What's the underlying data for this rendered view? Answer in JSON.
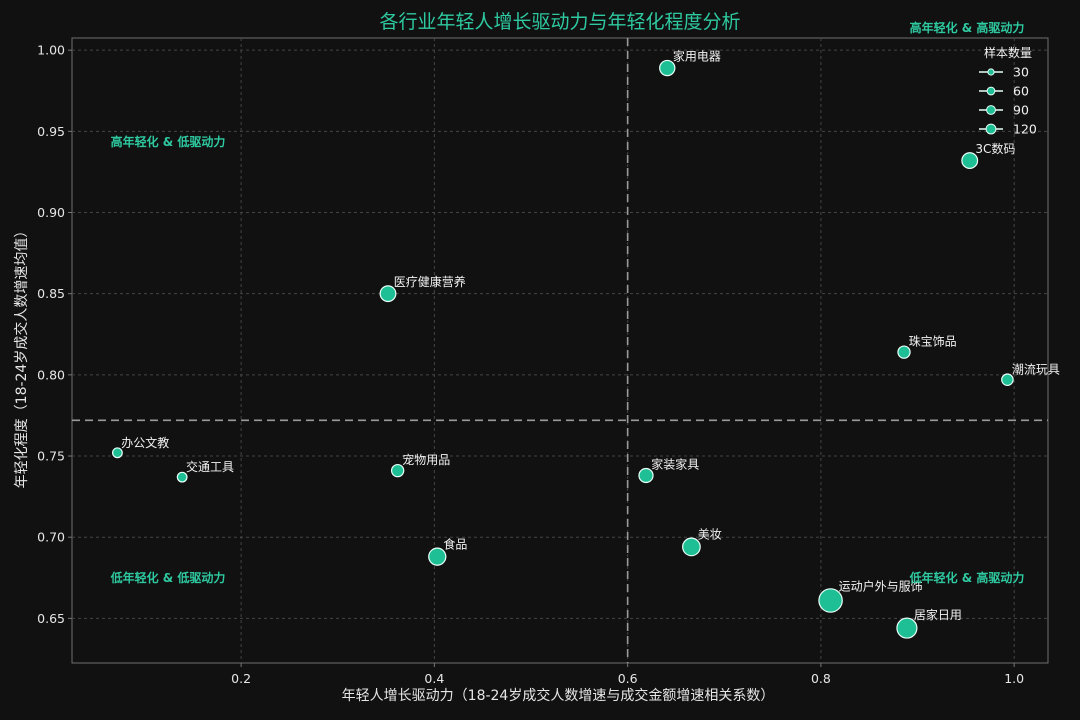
{
  "chart_data": {
    "type": "scatter",
    "title": "各行业年轻人增长驱动力与年轻化程度分析",
    "xlabel": "年轻人增长驱动力（18-24岁成交人数增速与成交金额增速相关系数）",
    "ylabel": "年轻化程度（18-24岁成交人数增速均值）",
    "xlim": [
      0.025,
      1.035
    ],
    "ylim": [
      0.6225,
      1.0075
    ],
    "xticks": [
      0.2,
      0.4,
      0.6,
      0.8,
      1.0
    ],
    "xtick_labels": [
      "0.2",
      "0.4",
      "0.6",
      "0.8",
      "1.0"
    ],
    "yticks": [
      0.65,
      0.7,
      0.75,
      0.8,
      0.85,
      0.9,
      0.95,
      1.0
    ],
    "ytick_labels": [
      "0.65",
      "0.70",
      "0.75",
      "0.80",
      "0.85",
      "0.90",
      "0.95",
      "1.00"
    ],
    "grid": true,
    "reference_lines": {
      "x": 0.6,
      "y": 0.772
    },
    "quadrant_labels": {
      "top_left": "高年轻化 & 低驱动力",
      "top_right": "高年轻化 & 高驱动力",
      "bottom_left": "低年轻化 & 低驱动力",
      "bottom_right": "低年轻化 & 高驱动力"
    },
    "legend": {
      "title": "样本数量",
      "position": "top-right",
      "entries": [
        {
          "label": "30",
          "size": 30
        },
        {
          "label": "60",
          "size": 60
        },
        {
          "label": "90",
          "size": 90
        },
        {
          "label": "120",
          "size": 120
        }
      ]
    },
    "points": [
      {
        "name": "家用电器",
        "x": 0.641,
        "y": 0.989,
        "size": 55
      },
      {
        "name": "3C数码",
        "x": 0.954,
        "y": 0.932,
        "size": 60
      },
      {
        "name": "医疗健康营养",
        "x": 0.352,
        "y": 0.85,
        "size": 60
      },
      {
        "name": "珠宝饰品",
        "x": 0.886,
        "y": 0.814,
        "size": 30
      },
      {
        "name": "潮流玩具",
        "x": 0.993,
        "y": 0.797,
        "size": 25
      },
      {
        "name": "办公文教",
        "x": 0.072,
        "y": 0.752,
        "size": 15
      },
      {
        "name": "交通工具",
        "x": 0.139,
        "y": 0.737,
        "size": 15
      },
      {
        "name": "宠物用品",
        "x": 0.362,
        "y": 0.741,
        "size": 30
      },
      {
        "name": "家装家具",
        "x": 0.619,
        "y": 0.738,
        "size": 45
      },
      {
        "name": "食品",
        "x": 0.403,
        "y": 0.688,
        "size": 75
      },
      {
        "name": "美妆",
        "x": 0.666,
        "y": 0.694,
        "size": 80
      },
      {
        "name": "运动户外与服饰",
        "x": 0.81,
        "y": 0.661,
        "size": 160
      },
      {
        "name": "居家日用",
        "x": 0.889,
        "y": 0.644,
        "size": 110
      }
    ],
    "colors": {
      "background": "#111111",
      "point_fill": "#1fbf95",
      "point_edge": "#e8fff8",
      "accent": "#2ec9a0",
      "grid": "#444444",
      "axis": "#777777",
      "refline": "#9a9a9a"
    }
  }
}
